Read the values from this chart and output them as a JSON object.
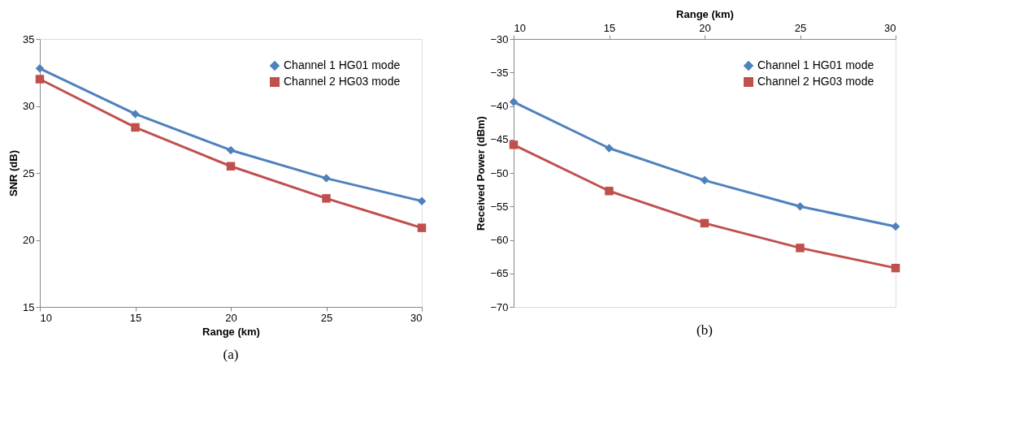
{
  "chart_data": [
    {
      "type": "line",
      "xlabel": "Range (km)",
      "ylabel": "SNR (dB)",
      "x": [
        10,
        15,
        20,
        25,
        30
      ],
      "xlim": [
        10,
        30
      ],
      "xticks": [
        10,
        15,
        20,
        25,
        30
      ],
      "ylim": [
        15,
        35
      ],
      "yticks": [
        15,
        20,
        25,
        30,
        35
      ],
      "grid": false,
      "legend": "top right",
      "line_style": "solid",
      "annotations": [
        "(a)"
      ],
      "series": [
        {
          "name": "Channel 1 HG01 mode",
          "color": "#4f81bd",
          "marker": "diamond",
          "values": [
            32.8,
            29.4,
            26.7,
            24.6,
            22.9
          ]
        },
        {
          "name": "Channel 2 HG03 mode",
          "color": "#c0504d",
          "marker": "square",
          "values": [
            32.0,
            28.4,
            25.5,
            23.1,
            20.9
          ]
        }
      ]
    },
    {
      "type": "line",
      "xlabel": "Range (km)",
      "ylabel": "Received Power (dBm)",
      "x": [
        10,
        15,
        20,
        25,
        30
      ],
      "xlim": [
        10,
        30
      ],
      "xticks": [
        10,
        15,
        20,
        25,
        30
      ],
      "ylim": [
        -70,
        -30
      ],
      "yticks": [
        -70,
        -65,
        -60,
        -55,
        -50,
        -45,
        -40,
        -35,
        -30
      ],
      "grid": false,
      "legend": "top right",
      "line_style": "solid",
      "annotations": [
        "(b)"
      ],
      "series": [
        {
          "name": "Channel 1 HG01 mode",
          "color": "#4f81bd",
          "marker": "diamond",
          "values": [
            -39.4,
            -46.3,
            -51.1,
            -55.0,
            -58.0
          ]
        },
        {
          "name": "Channel 2 HG03 mode",
          "color": "#c0504d",
          "marker": "square",
          "values": [
            -45.8,
            -52.7,
            -57.5,
            -61.2,
            -64.2
          ]
        }
      ]
    }
  ]
}
